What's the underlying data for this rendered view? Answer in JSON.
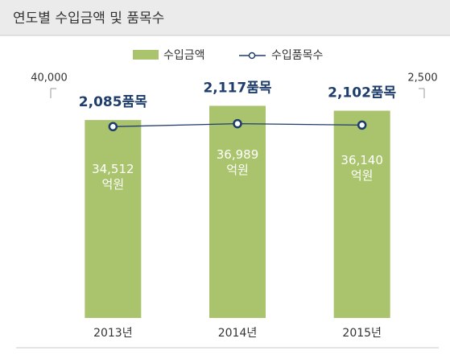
{
  "chart_data": {
    "type": "bar+line",
    "title": "연도별 수입금액 및 품목수",
    "categories": [
      "2013년",
      "2014년",
      "2015년"
    ],
    "ylim": [
      0,
      40000
    ],
    "yticks": [
      {
        "value": 40000,
        "label": "40,000"
      }
    ],
    "y2lim": [
      0,
      2500
    ],
    "y2ticks": [
      {
        "value": 2500,
        "label": "2,500"
      }
    ],
    "series": [
      {
        "name": "수입금액",
        "color": "#a9c46c",
        "values": [
          34512,
          36989,
          36140
        ],
        "value_labels": [
          "34,512\n억원",
          "36,989\n억원",
          "36,140\n억원"
        ]
      },
      {
        "name": "수입품목수",
        "color": "#1e3d6b",
        "axis": "y2",
        "values": [
          2085,
          2117,
          2102
        ],
        "value_labels": [
          "2,085품목",
          "2,117품목",
          "2,102품목"
        ]
      }
    ]
  }
}
